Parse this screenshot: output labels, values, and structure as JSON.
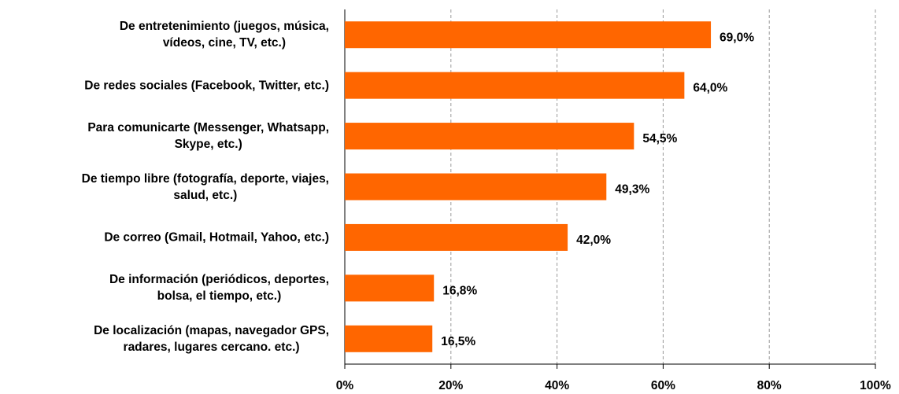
{
  "chart_data": {
    "type": "bar",
    "orientation": "horizontal",
    "categories": [
      "De entretenimiento (juegos, música,\nvídeos, cine, TV, etc.)",
      "De redes sociales (Facebook, Twitter, etc.)",
      "Para comunicarte (Messenger, Whatsapp,\nSkype, etc.)",
      "De tiempo libre (fotografía, deporte, viajes,\nsalud, etc.)",
      "De correo (Gmail, Hotmail, Yahoo, etc.)",
      "De información (periódicos, deportes,\nbolsa, el tiempo, etc.)",
      "De localización (mapas, navegador GPS,\nradares, lugares cercano. etc.)"
    ],
    "values": [
      69.0,
      64.0,
      54.5,
      49.3,
      42.0,
      16.8,
      16.5
    ],
    "value_labels": [
      "69,0%",
      "64,0%",
      "54,5%",
      "49,3%",
      "42,0%",
      "16,8%",
      "16,5%"
    ],
    "color": "#ff6600",
    "xlim": [
      0,
      100
    ],
    "xticks": [
      {
        "value": 0,
        "label": "0%"
      },
      {
        "value": 20,
        "label": "20%"
      },
      {
        "value": 40,
        "label": "40%"
      },
      {
        "value": 60,
        "label": "60%"
      },
      {
        "value": 80,
        "label": "80%"
      },
      {
        "value": 100,
        "label": "100%"
      }
    ],
    "grid": true
  }
}
